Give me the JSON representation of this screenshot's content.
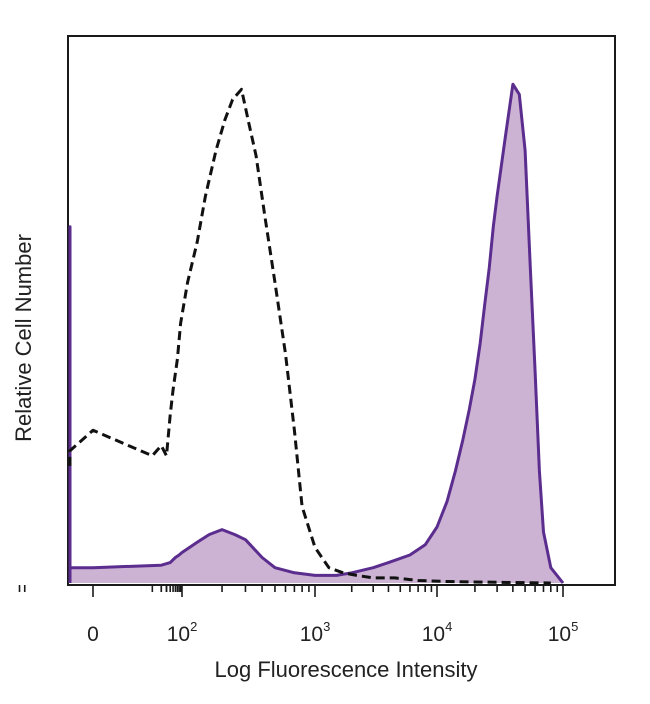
{
  "chart_data": {
    "type": "area",
    "title": "",
    "xlabel": "Log Fluorescence Intensity",
    "ylabel": "Relative Cell Number",
    "x_scale": "biexponential",
    "x_ticks": [
      {
        "value": 0,
        "base": "0",
        "exp": ""
      },
      {
        "value": 100,
        "base": "10",
        "exp": "2"
      },
      {
        "value": 1000,
        "base": "10",
        "exp": "3"
      },
      {
        "value": 10000,
        "base": "10",
        "exp": "4"
      },
      {
        "value": 100000,
        "base": "10",
        "exp": "5"
      }
    ],
    "ylim": [
      0,
      100
    ],
    "grid": false,
    "series": [
      {
        "style": "dashed-black-outline",
        "color": "#111111",
        "x": [
          -40,
          -20,
          0,
          10,
          20,
          30,
          40,
          50,
          70,
          90,
          110,
          130,
          150,
          180,
          210,
          240,
          280,
          320,
          360,
          420,
          500,
          600,
          700,
          800,
          1000,
          1300,
          1700,
          2200,
          3000,
          4500,
          7000,
          12000,
          20000,
          40000,
          80000
        ],
        "y": [
          23,
          26,
          30,
          25,
          27,
          25,
          33,
          38,
          44,
          51,
          59,
          67,
          76,
          85,
          91,
          95,
          97,
          90,
          84,
          72,
          59,
          45,
          30,
          15,
          7,
          3,
          2,
          1.5,
          1,
          1,
          0.5,
          0.3,
          0.2,
          0.1,
          0
        ]
      },
      {
        "style": "filled-purple",
        "color": "#5b2d8e",
        "fill": "#cdb3d3",
        "x": [
          -40,
          -30,
          -20,
          0,
          20,
          40,
          60,
          80,
          100,
          130,
          160,
          200,
          250,
          300,
          400,
          500,
          700,
          1000,
          1500,
          2000,
          3000,
          4000,
          6000,
          8000,
          10000,
          12000,
          14000,
          16000,
          18000,
          20000,
          22000,
          24000,
          26000,
          28000,
          30000,
          35000,
          40000,
          45000,
          50000,
          55000,
          60000,
          65000,
          70000,
          80000,
          100000
        ],
        "y": [
          0,
          70,
          3,
          3,
          3.5,
          4,
          5,
          5.5,
          6,
          8,
          9.5,
          10.5,
          9.5,
          8.5,
          5,
          3,
          2,
          1.5,
          1.5,
          2,
          3,
          4,
          5.5,
          7.5,
          11,
          16,
          22,
          28,
          34,
          40,
          47,
          55,
          62,
          70,
          76,
          88,
          98,
          96,
          85,
          62,
          42,
          22,
          10,
          3,
          0
        ]
      }
    ]
  }
}
